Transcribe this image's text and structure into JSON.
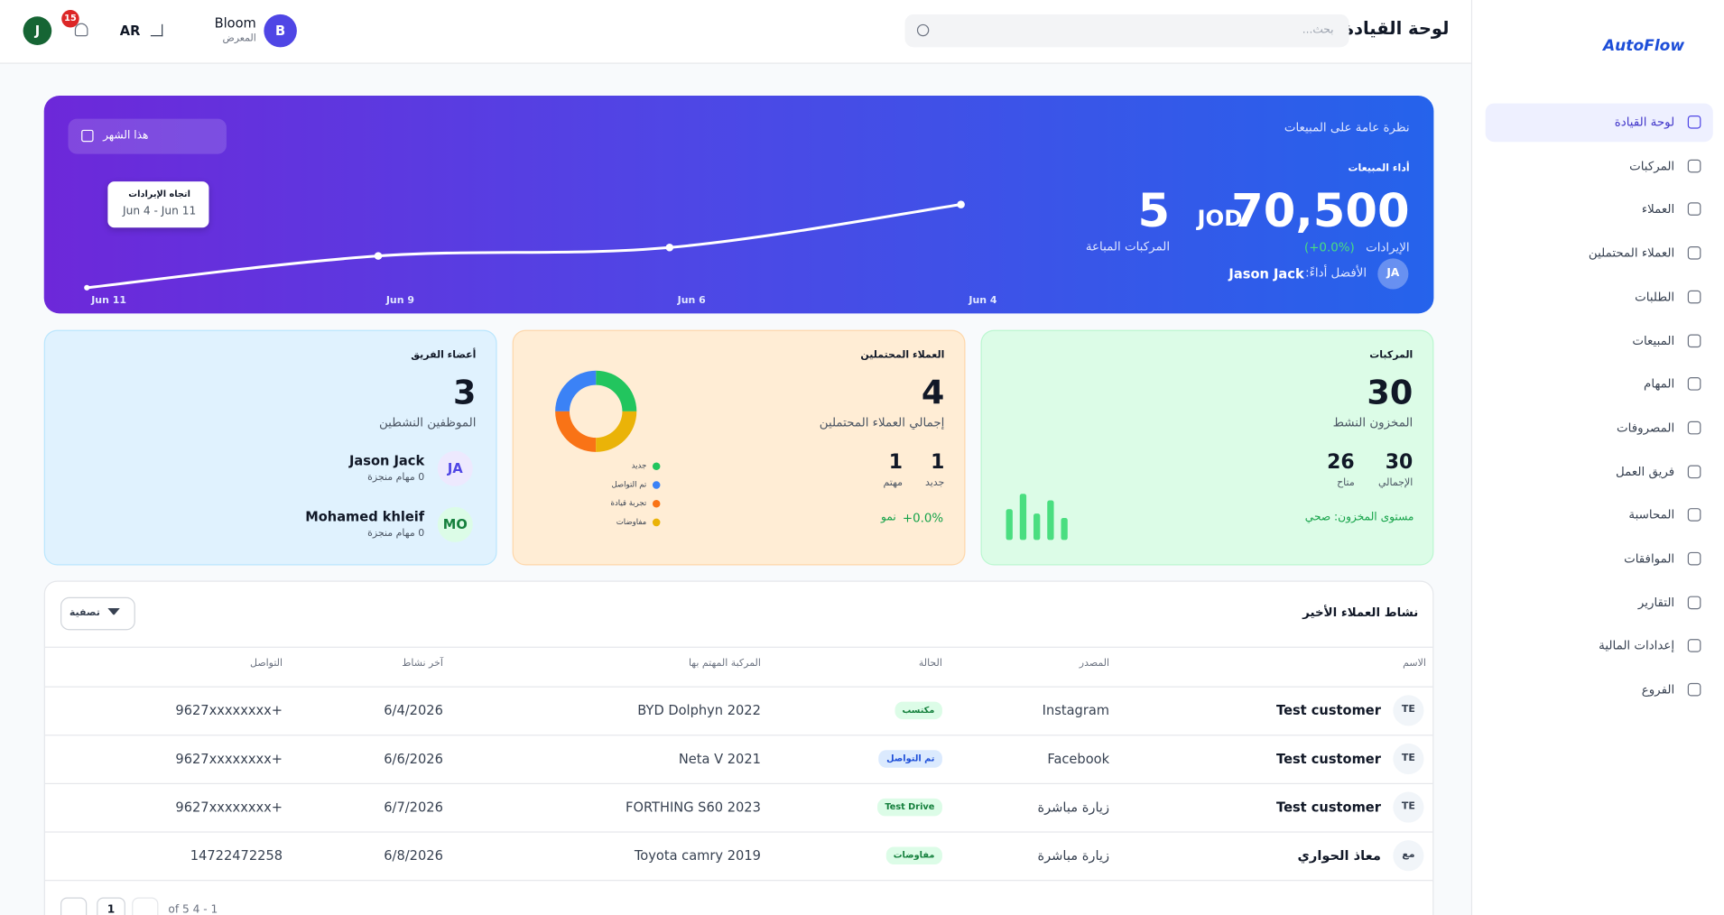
{
  "sidebar": {
    "logo": "AutoFlow",
    "items": [
      "لوحة القيادة",
      "المركبات",
      "العملاء",
      "العملاء المحتملين",
      "الطلبات",
      "المبيعات",
      "المهام",
      "المصروفات",
      "فريق العمل",
      "المحاسبة",
      "الموافقات",
      "التقارير",
      "إعدادات المالية",
      "الفروع"
    ]
  },
  "header": {
    "title": "لوحة القيادة",
    "search_placeholder": "بحث...",
    "company": "Bloom",
    "company_subtitle": "المعرض",
    "company_initial": "B",
    "language": "AR",
    "notifications": "15",
    "user_initial": "J"
  },
  "sales_overview": {
    "title": "نظرة عامة على المبيعات",
    "period": "هذا الشهر",
    "performance_label": "أداء المبيعات",
    "revenue": "70,500",
    "currency": "JOD",
    "revenue_label": "الإيرادات",
    "revenue_change": "(+0.0%)",
    "vehicles_sold": "5",
    "vehicles_sold_label": "المركبات المباعة",
    "top_performer_label": "الأفضل أداءً:",
    "top_performer": "Jason Jack",
    "top_performer_initials": "JA",
    "tooltip_title": "اتجاه الإيرادات",
    "tooltip_range": "Jun 4 - Jun 11"
  },
  "chart_data": {
    "type": "line",
    "categories": [
      "Jun 11",
      "Jun 9",
      "Jun 6",
      "Jun 4"
    ],
    "values": [
      4,
      38,
      47,
      93
    ],
    "ylim": [
      0,
      100
    ],
    "color": "#ffffff"
  },
  "vehicles_card": {
    "title": "المركبات",
    "value": "30",
    "subtitle": "المخزون النشط",
    "stats": [
      {
        "value": "30",
        "label": "الإجمالي"
      },
      {
        "value": "26",
        "label": "متاح"
      }
    ],
    "status": "مستوى المخزون: صحي",
    "bars": [
      28,
      42,
      24,
      36,
      20
    ],
    "bars_ylim": [
      0,
      50
    ],
    "bar_color": "#4ade80"
  },
  "leads_card": {
    "title": "العملاء المحتملين",
    "value": "4",
    "subtitle": "إجمالي العملاء المحتملين",
    "stats": [
      {
        "value": "1",
        "label": "جديد"
      },
      {
        "value": "1",
        "label": "مهتم"
      }
    ],
    "growth": "+0.0%",
    "growth_label": "نمو",
    "donut": {
      "labels": [
        "جديد",
        "تم التواصل",
        "تجربة قيادة",
        "مفاوضات"
      ],
      "values": [
        1,
        1,
        1,
        1
      ],
      "colors": [
        "#22c55e",
        "#3b82f6",
        "#f97316",
        "#eab308"
      ]
    }
  },
  "team_card": {
    "title": "أعضاء الفريق",
    "value": "3",
    "subtitle": "الموظفين النشطين",
    "members": [
      {
        "name": "Jason Jack",
        "initials": "JA",
        "tasks": "0 مهام منجزة"
      },
      {
        "name": "Mohamed khleif",
        "initials": "MO",
        "tasks": "0 مهام منجزة"
      }
    ]
  },
  "activity": {
    "title": "نشاط العملاء الأخير",
    "filter": "تصفية",
    "columns": [
      "الاسم",
      "المصدر",
      "الحالة",
      "المركبة المهتم بها",
      "آخر نشاط",
      "التواصل"
    ],
    "rows": [
      {
        "initials": "TE",
        "name": "Test customer",
        "source": "Instagram",
        "status": "مكتسب",
        "status_color": "green",
        "vehicle": "BYD Dolphyn 2022",
        "last_activity": "6/4/2026",
        "contact": "9627xxxxxxxx+"
      },
      {
        "initials": "TE",
        "name": "Test customer",
        "source": "Facebook",
        "status": "تم التواصل",
        "status_color": "blue",
        "vehicle": "Neta V 2021",
        "last_activity": "6/6/2026",
        "contact": "9627xxxxxxxx+"
      },
      {
        "initials": "TE",
        "name": "Test customer",
        "source": "زيارة مباشرة",
        "status": "Test Drive",
        "status_color": "green",
        "vehicle": "FORTHING S60 2023",
        "last_activity": "6/7/2026",
        "contact": "9627xxxxxxxx+"
      },
      {
        "initials": "مع",
        "name": "معاذ الحواري",
        "source": "زيارة مباشرة",
        "status": "مفاوضات",
        "status_color": "green",
        "vehicle": "Toyota camry 2019",
        "last_activity": "6/8/2026",
        "contact": "14722472258"
      }
    ],
    "pagination": {
      "page": "1",
      "range": "of 5 4 - 1"
    }
  }
}
